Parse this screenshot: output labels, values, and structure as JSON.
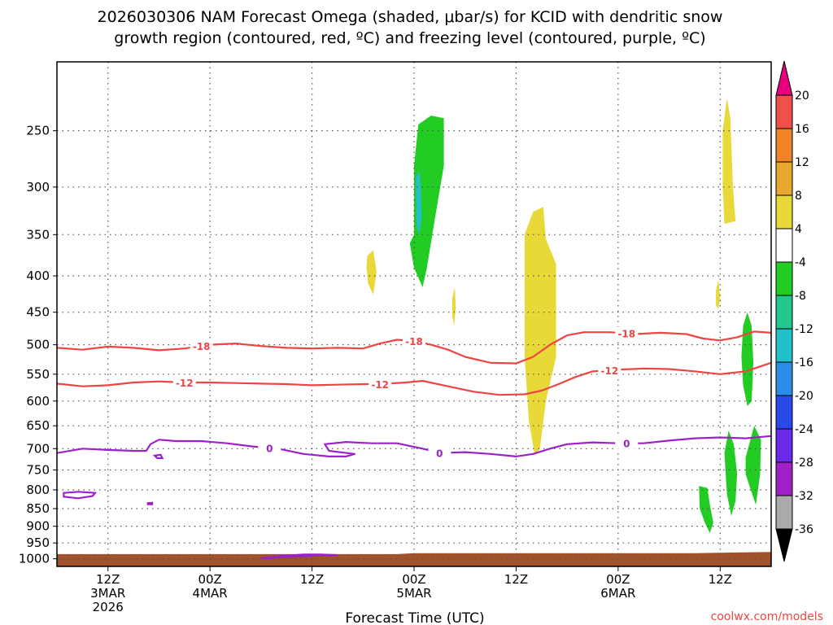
{
  "chart_data": {
    "type": "time-height",
    "title_line1": "2026030306 NAM Forecast Omega (shaded, μbar/s) for KCID with dendritic snow",
    "title_line2": "growth region (contoured, red, ºC) and freezing level (contoured, purple, ºC)",
    "xlabel": "Forecast Time (UTC)",
    "ylabel": "",
    "credit": "coolwx.com/models",
    "colors": {
      "isotherm": "#ee4444",
      "freezing": "#9a22c8",
      "ground": "#a0522d",
      "grid": "#555555"
    },
    "x_hours_range": [
      0,
      84
    ],
    "y_pressure_range": [
      1025,
      200
    ],
    "y_ticks": [
      250,
      300,
      350,
      400,
      450,
      500,
      550,
      600,
      650,
      700,
      750,
      800,
      850,
      900,
      950,
      1000
    ],
    "x_ticks": [
      {
        "hour": 6,
        "line1": "12Z",
        "line2": "3MAR",
        "line3": "2026"
      },
      {
        "hour": 18,
        "line1": "00Z",
        "line2": "4MAR",
        "line3": ""
      },
      {
        "hour": 30,
        "line1": "12Z",
        "line2": "",
        "line3": ""
      },
      {
        "hour": 42,
        "line1": "00Z",
        "line2": "5MAR",
        "line3": ""
      },
      {
        "hour": 54,
        "line1": "12Z",
        "line2": "",
        "line3": ""
      },
      {
        "hour": 66,
        "line1": "00Z",
        "line2": "6MAR",
        "line3": ""
      },
      {
        "hour": 78,
        "line1": "12Z",
        "line2": "",
        "line3": ""
      }
    ],
    "colorbar": {
      "labels": [
        "20",
        "16",
        "12",
        "8",
        "4",
        "-4",
        "-8",
        "-12",
        "-16",
        "-20",
        "-24",
        "-28",
        "-32",
        "-36"
      ],
      "segments": [
        {
          "lo": 16,
          "hi": 20,
          "color": "#f0504a"
        },
        {
          "lo": 12,
          "hi": 16,
          "color": "#f08228"
        },
        {
          "lo": 8,
          "hi": 12,
          "color": "#e8a830"
        },
        {
          "lo": 4,
          "hi": 8,
          "color": "#e8d838"
        },
        {
          "lo": -4,
          "hi": 4,
          "color": "#ffffff"
        },
        {
          "lo": -8,
          "hi": -4,
          "color": "#22cc22"
        },
        {
          "lo": -12,
          "hi": -8,
          "color": "#22c88a"
        },
        {
          "lo": -16,
          "hi": -12,
          "color": "#22c0c8"
        },
        {
          "lo": -20,
          "hi": -16,
          "color": "#2a8ee8"
        },
        {
          "lo": -24,
          "hi": -20,
          "color": "#2a4ae8"
        },
        {
          "lo": -28,
          "hi": -24,
          "color": "#6a2ae8"
        },
        {
          "lo": -32,
          "hi": -28,
          "color": "#a020c8"
        },
        {
          "lo": -36,
          "hi": -32,
          "color": "#aaaaaa"
        }
      ],
      "top_arrow_color": "#e6007e",
      "bottom_arrow_color": "#000000"
    },
    "omega_regions": [
      {
        "name": "omega-ascent-core-5mar",
        "value": -8,
        "color": "#22cc22",
        "points": [
          [
            42,
            350
          ],
          [
            42,
            320
          ],
          [
            42,
            280
          ],
          [
            42.5,
            245
          ],
          [
            44,
            238
          ],
          [
            45.5,
            240
          ],
          [
            45.5,
            280
          ],
          [
            44.5,
            330
          ],
          [
            43.5,
            390
          ],
          [
            43,
            415
          ],
          [
            42,
            390
          ],
          [
            41.5,
            360
          ]
        ]
      },
      {
        "name": "omega-ascent-inner-5mar",
        "value": -12,
        "color": "#22c0c8",
        "points": [
          [
            42.2,
            290
          ],
          [
            42.7,
            285
          ],
          [
            42.9,
            330
          ],
          [
            42.6,
            350
          ],
          [
            42.3,
            340
          ]
        ]
      },
      {
        "name": "omega-subsidence-400mb",
        "value": 4,
        "color": "#e8d838",
        "points": [
          [
            36.5,
            375
          ],
          [
            37.2,
            368
          ],
          [
            37.6,
            395
          ],
          [
            37.2,
            425
          ],
          [
            36.6,
            410
          ],
          [
            36.4,
            390
          ]
        ]
      },
      {
        "name": "omega-subsidence-sliver-5mar",
        "value": 4,
        "color": "#e8d838",
        "points": [
          [
            46.5,
            430
          ],
          [
            46.8,
            415
          ],
          [
            46.9,
            445
          ],
          [
            46.7,
            470
          ],
          [
            46.5,
            455
          ]
        ]
      },
      {
        "name": "omega-subsidence-large-5mar",
        "value": 4,
        "color": "#e8d838",
        "points": [
          [
            55,
            350
          ],
          [
            56,
            325
          ],
          [
            57.2,
            320
          ],
          [
            57.5,
            355
          ],
          [
            58.7,
            385
          ],
          [
            58.7,
            520
          ],
          [
            57.5,
            600
          ],
          [
            56.8,
            700
          ],
          [
            56.2,
            715
          ],
          [
            55.5,
            640
          ],
          [
            55,
            520
          ],
          [
            55,
            400
          ]
        ]
      },
      {
        "name": "omega-subsidence-upper-6mar",
        "value": 4,
        "color": "#e8d838",
        "points": [
          [
            78.3,
            250
          ],
          [
            78.8,
            225
          ],
          [
            79.2,
            240
          ],
          [
            79.5,
            300
          ],
          [
            79.8,
            335
          ],
          [
            78.5,
            338
          ],
          [
            78.3,
            300
          ]
        ]
      },
      {
        "name": "omega-subsidence-sliver-6mar",
        "value": 4,
        "color": "#e8d838",
        "points": [
          [
            77.5,
            420
          ],
          [
            77.8,
            405
          ],
          [
            78,
            430
          ],
          [
            77.8,
            445
          ],
          [
            77.5,
            440
          ]
        ]
      },
      {
        "name": "omega-ascent-midlevel-6mar",
        "value": -8,
        "color": "#22cc22",
        "points": [
          [
            80.7,
            470
          ],
          [
            81.2,
            450
          ],
          [
            81.7,
            470
          ],
          [
            81.9,
            530
          ],
          [
            81.7,
            600
          ],
          [
            81.2,
            610
          ],
          [
            80.7,
            570
          ],
          [
            80.5,
            520
          ]
        ]
      },
      {
        "name": "omega-ascent-low-a-6mar",
        "value": -8,
        "color": "#22cc22",
        "points": [
          [
            75.5,
            790
          ],
          [
            76.5,
            795
          ],
          [
            76.8,
            840
          ],
          [
            77.2,
            890
          ],
          [
            76.8,
            920
          ],
          [
            76.2,
            890
          ],
          [
            75.6,
            850
          ]
        ]
      },
      {
        "name": "omega-ascent-low-b-6mar",
        "value": -8,
        "color": "#22cc22",
        "points": [
          [
            78.5,
            710
          ],
          [
            79,
            660
          ],
          [
            79.6,
            690
          ],
          [
            80,
            760
          ],
          [
            79.8,
            830
          ],
          [
            79.3,
            870
          ],
          [
            78.8,
            810
          ]
        ]
      },
      {
        "name": "omega-ascent-low-c-6mar",
        "value": -8,
        "color": "#22cc22",
        "points": [
          [
            81,
            720
          ],
          [
            82,
            650
          ],
          [
            82.8,
            680
          ],
          [
            82.7,
            760
          ],
          [
            82.2,
            840
          ],
          [
            81.6,
            800
          ],
          [
            81,
            760
          ]
        ]
      }
    ],
    "contours": [
      {
        "name": "isotherm-minus18",
        "label": "-18",
        "color": "#ee4444",
        "label_x": 17,
        "points": [
          [
            0,
            505
          ],
          [
            3,
            508
          ],
          [
            6,
            503
          ],
          [
            9,
            505
          ],
          [
            12,
            509
          ],
          [
            15,
            506
          ],
          [
            18,
            500
          ],
          [
            21,
            498
          ],
          [
            24,
            502
          ],
          [
            27,
            505
          ],
          [
            30,
            506
          ],
          [
            33,
            505
          ],
          [
            36,
            506
          ],
          [
            38,
            498
          ],
          [
            40,
            492
          ],
          [
            42,
            494
          ],
          [
            44,
            500
          ],
          [
            46,
            508
          ],
          [
            48,
            520
          ],
          [
            51,
            530
          ],
          [
            54,
            531
          ],
          [
            56,
            520
          ],
          [
            58,
            500
          ],
          [
            60,
            485
          ],
          [
            62,
            480
          ],
          [
            65,
            480
          ],
          [
            68,
            483
          ],
          [
            71,
            481
          ],
          [
            74,
            483
          ],
          [
            76,
            490
          ],
          [
            78,
            493
          ],
          [
            80,
            488
          ],
          [
            82,
            479
          ],
          [
            84,
            481
          ]
        ]
      },
      {
        "name": "isotherm-minus18-b",
        "label": "-18",
        "color": "#ee4444",
        "label_x": 42,
        "points": []
      },
      {
        "name": "isotherm-minus18-c",
        "label": "-18",
        "color": "#ee4444",
        "label_x": 67,
        "points": []
      },
      {
        "name": "isotherm-minus12",
        "label": "-12",
        "color": "#ee4444",
        "label_x": 15,
        "points": [
          [
            0,
            567
          ],
          [
            3,
            572
          ],
          [
            6,
            570
          ],
          [
            9,
            565
          ],
          [
            12,
            563
          ],
          [
            15,
            565
          ],
          [
            18,
            565
          ],
          [
            21,
            566
          ],
          [
            24,
            567
          ],
          [
            27,
            568
          ],
          [
            30,
            570
          ],
          [
            33,
            569
          ],
          [
            36,
            568
          ],
          [
            38,
            568
          ],
          [
            41,
            565
          ],
          [
            43,
            562
          ],
          [
            46,
            572
          ],
          [
            49,
            582
          ],
          [
            52,
            588
          ],
          [
            55,
            587
          ],
          [
            57,
            580
          ],
          [
            59,
            568
          ],
          [
            61,
            555
          ],
          [
            63,
            545
          ],
          [
            66,
            542
          ],
          [
            69,
            540
          ],
          [
            72,
            541
          ],
          [
            75,
            545
          ],
          [
            78,
            550
          ],
          [
            81,
            545
          ],
          [
            84,
            530
          ]
        ]
      },
      {
        "name": "isotherm-minus12-b",
        "label": "-12",
        "color": "#ee4444",
        "label_x": 38,
        "points": []
      },
      {
        "name": "isotherm-minus12-c",
        "label": "-12",
        "color": "#ee4444",
        "label_x": 65,
        "points": []
      },
      {
        "name": "freezing-level-0",
        "label": "0",
        "color": "#9a22c8",
        "label_x": 25,
        "points": [
          [
            0,
            710
          ],
          [
            3,
            700
          ],
          [
            6,
            703
          ],
          [
            9,
            705
          ],
          [
            10.5,
            705
          ],
          [
            11,
            690
          ],
          [
            12,
            680
          ],
          [
            14,
            683
          ],
          [
            17,
            683
          ],
          [
            20,
            688
          ],
          [
            23,
            695
          ],
          [
            26,
            700
          ],
          [
            29,
            712
          ],
          [
            32,
            718
          ],
          [
            34,
            718
          ],
          [
            35,
            712
          ],
          [
            32,
            705
          ],
          [
            31.5,
            690
          ],
          [
            34,
            685
          ],
          [
            37,
            688
          ],
          [
            40,
            688
          ],
          [
            43,
            700
          ],
          [
            45,
            710
          ],
          [
            48,
            708
          ],
          [
            51,
            712
          ],
          [
            54,
            718
          ],
          [
            56,
            712
          ],
          [
            58,
            700
          ],
          [
            60,
            690
          ],
          [
            63,
            686
          ],
          [
            66,
            688
          ],
          [
            69,
            688
          ],
          [
            72,
            682
          ],
          [
            75,
            677
          ],
          [
            78,
            675
          ],
          [
            81,
            677
          ],
          [
            84,
            672
          ]
        ]
      },
      {
        "name": "freezing-level-0-b",
        "label": "0",
        "color": "#9a22c8",
        "label_x": 45,
        "points": []
      },
      {
        "name": "freezing-level-0-c",
        "label": "0",
        "color": "#9a22c8",
        "label_x": 67,
        "points": []
      }
    ],
    "freezing_blobs": [
      {
        "name": "freezing-blob-810mb",
        "color": "#9a22c8",
        "points": [
          [
            0.8,
            808
          ],
          [
            2.5,
            805
          ],
          [
            4.5,
            808
          ],
          [
            4.2,
            816
          ],
          [
            2.5,
            822
          ],
          [
            0.8,
            818
          ]
        ]
      },
      {
        "name": "freezing-blob-720mb",
        "color": "#9a22c8",
        "points": [
          [
            11.5,
            716
          ],
          [
            12.2,
            714
          ],
          [
            12.4,
            722
          ],
          [
            11.8,
            722
          ]
        ]
      },
      {
        "name": "freezing-blob-835mb",
        "color": "#9a22c8",
        "points": [
          [
            10.7,
            835
          ],
          [
            11.2,
            834
          ],
          [
            11.2,
            838
          ],
          [
            10.7,
            838
          ]
        ]
      },
      {
        "name": "freezing-line-near-surface",
        "color": "#9a22c8",
        "points": [
          [
            24,
            998
          ],
          [
            27,
            990
          ],
          [
            29,
            986
          ],
          [
            31,
            986
          ],
          [
            33,
            988
          ],
          [
            31,
            990
          ],
          [
            28,
            992
          ],
          [
            25,
            998
          ]
        ]
      }
    ],
    "ground": {
      "points": [
        [
          0,
          985
        ],
        [
          24,
          985
        ],
        [
          40,
          985
        ],
        [
          42,
          982
        ],
        [
          60,
          982
        ],
        [
          75,
          982
        ],
        [
          84,
          978
        ]
      ]
    }
  }
}
